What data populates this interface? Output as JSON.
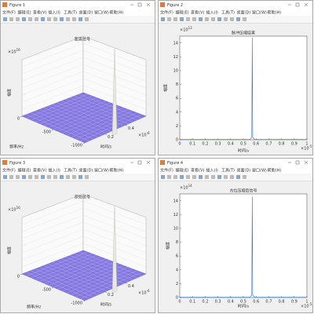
{
  "menu": [
    "文件(F)",
    "编辑(E)",
    "查看(V)",
    "插入(I)",
    "工具(T)",
    "桌面(D)",
    "窗口(W)",
    "帮助(H)"
  ],
  "windows": [
    {
      "title": "Figure 1",
      "plot": {
        "type": "surface3d",
        "title": "距离信号",
        "xlabel": "时间/s",
        "ylabel": "频率/Hz",
        "zlabel": "幅度",
        "xticks": [
          0.2,
          0.4
        ],
        "yticks": [
          -1000,
          -500,
          0
        ],
        "x_exponent": {
          "base": "×10",
          "power": -6
        },
        "z_exponent": {
          "base": "×10",
          "power": 16
        }
      }
    },
    {
      "title": "Figure 2",
      "plot": {
        "type": "line",
        "title": "脉冲压缩结果",
        "xlabel": "时间/s",
        "ylabel": "幅度",
        "xlim": [
          0,
          1
        ],
        "ylim": [
          0,
          15
        ],
        "xticks": [
          0,
          0.1,
          0.2,
          0.3,
          0.4,
          0.5,
          0.6,
          0.7,
          0.8,
          0.9,
          1
        ],
        "yticks": [
          0,
          2,
          4,
          6,
          8,
          10,
          12,
          14
        ],
        "x_exponent": {
          "base": "×10",
          "power": -5
        },
        "y_exponent": {
          "base": "×10",
          "power": 13
        },
        "peak": {
          "x": 0.57,
          "y": 14.8
        }
      }
    },
    {
      "title": "Figure 3",
      "plot": {
        "type": "surface3d",
        "title": "原始信号",
        "xlabel": "时间/s",
        "ylabel": "频率/Hz",
        "zlabel": "幅度",
        "xticks": [
          0.2,
          0.4
        ],
        "yticks": [
          -1000,
          -500,
          0
        ],
        "x_exponent": {
          "base": "×10",
          "power": -6
        },
        "z_exponent": {
          "base": "×10",
          "power": 16
        }
      }
    },
    {
      "title": "Figure 4",
      "plot": {
        "type": "line",
        "title": "方位压缩后信号",
        "xlabel": "时间/s",
        "ylabel": "幅度",
        "xlim": [
          0,
          1
        ],
        "ylim": [
          0,
          15
        ],
        "xticks": [
          0,
          0.1,
          0.2,
          0.3,
          0.4,
          0.5,
          0.6,
          0.7,
          0.8,
          0.9,
          1
        ],
        "yticks": [
          0,
          2,
          4,
          6,
          8,
          10,
          12,
          14
        ],
        "x_exponent": {
          "base": "×10",
          "power": -5
        },
        "y_exponent": {
          "base": "×10",
          "power": 14
        },
        "peak": {
          "x": 0.57,
          "y": 14.6
        }
      }
    }
  ]
}
